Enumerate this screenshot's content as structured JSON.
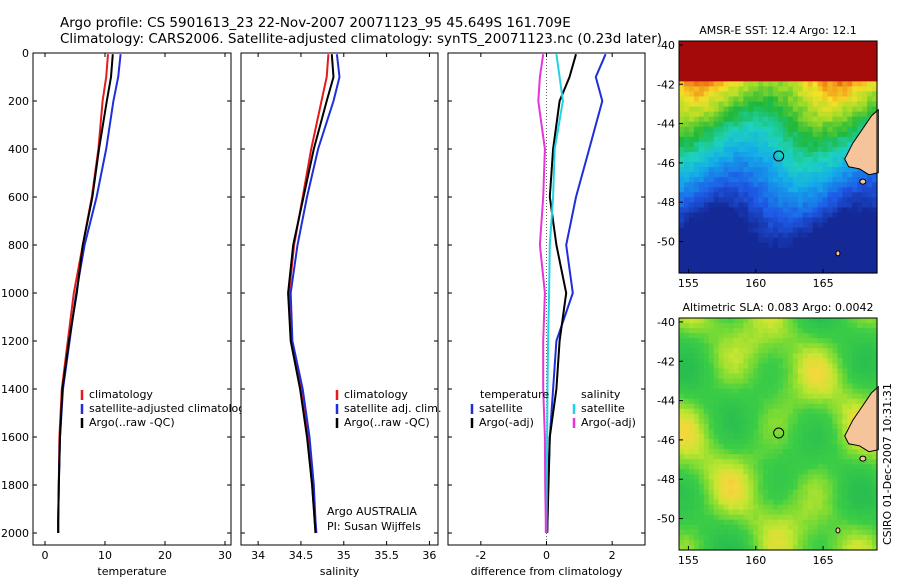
{
  "header": {
    "title_line1": "Argo profile: CS 5901613_23 22-Nov-2007 20071123_95 45.649S 161.709E",
    "title_line2": "Climatology: CARS2006. Satellite-adjusted climatology: synTS_20071123.nc (0.23d later)"
  },
  "side_stamp": "CSIRO 01-Dec-2007 10:31:31",
  "chart_data": [
    {
      "id": "temperature",
      "type": "line",
      "xlabel": "temperature",
      "ylabel": "",
      "xlim": [
        -2,
        31
      ],
      "ylim": [
        2050,
        0
      ],
      "xticks": [
        "0",
        "10",
        "20",
        "30"
      ],
      "yticks": [
        "0",
        "200",
        "400",
        "600",
        "800",
        "1000",
        "1200",
        "1400",
        "1600",
        "1800",
        "2000"
      ],
      "legend": [
        "climatology",
        "satellite-adjusted climatology",
        "Argo(..raw -QC)"
      ],
      "series": [
        {
          "name": "climatology",
          "color": "#e41a1c",
          "x": [
            10.5,
            10.2,
            9.6,
            8.9,
            7.8,
            6.3,
            4.8,
            3.8,
            2.8,
            2.4,
            2.3,
            2.2,
            2.2
          ],
          "y": [
            5,
            100,
            200,
            400,
            600,
            800,
            1000,
            1200,
            1400,
            1600,
            1800,
            1950,
            2000
          ]
        },
        {
          "name": "satellite-adjusted climatology",
          "color": "#1f2fd8",
          "x": [
            12.6,
            12.2,
            11.4,
            10.2,
            8.6,
            6.6,
            5.2,
            4.1,
            3.0,
            2.5,
            2.3,
            2.2,
            2.2
          ],
          "y": [
            5,
            100,
            200,
            400,
            600,
            800,
            1000,
            1200,
            1400,
            1600,
            1800,
            1950,
            2000
          ]
        },
        {
          "name": "Argo(..raw -QC)",
          "color": "#000000",
          "x": [
            11.3,
            11.0,
            10.3,
            9.0,
            7.9,
            6.3,
            5.3,
            4.0,
            2.9,
            2.5,
            2.3,
            2.2,
            2.2
          ],
          "y": [
            5,
            100,
            200,
            400,
            600,
            800,
            1000,
            1200,
            1400,
            1600,
            1800,
            1950,
            2000
          ]
        }
      ]
    },
    {
      "id": "salinity",
      "type": "line",
      "xlabel": "salinity",
      "ylabel": "",
      "xlim": [
        33.8,
        36.1
      ],
      "ylim": [
        2050,
        0
      ],
      "xticks": [
        "34",
        "34.5",
        "35",
        "35.5",
        "36"
      ],
      "legend": [
        "climatology",
        "satellite adj. clim.",
        "Argo(..raw -QC)"
      ],
      "annotation": [
        "Argo AUSTRALIA",
        "PI: Susan Wijffels"
      ],
      "series": [
        {
          "name": "climatology",
          "color": "#e41a1c",
          "x": [
            34.82,
            34.8,
            34.74,
            34.62,
            34.52,
            34.42,
            34.36,
            34.39,
            34.5,
            34.58,
            34.63,
            34.66,
            34.67
          ],
          "y": [
            5,
            100,
            200,
            400,
            600,
            800,
            1000,
            1200,
            1400,
            1600,
            1800,
            1950,
            2000
          ]
        },
        {
          "name": "satellite adj. clim.",
          "color": "#1f2fd8",
          "x": [
            34.92,
            34.95,
            34.88,
            34.7,
            34.57,
            34.46,
            34.38,
            34.4,
            34.52,
            34.6,
            34.65,
            34.67,
            34.68
          ],
          "y": [
            5,
            100,
            200,
            400,
            600,
            800,
            1000,
            1200,
            1400,
            1600,
            1800,
            1950,
            2000
          ]
        },
        {
          "name": "Argo(..raw -QC)",
          "color": "#000000",
          "x": [
            34.86,
            34.88,
            34.8,
            34.65,
            34.53,
            34.41,
            34.35,
            34.38,
            34.49,
            34.57,
            34.63,
            34.66,
            34.67
          ],
          "y": [
            5,
            100,
            200,
            400,
            600,
            800,
            1000,
            1200,
            1400,
            1600,
            1800,
            1950,
            2000
          ]
        }
      ]
    },
    {
      "id": "difference",
      "type": "line",
      "xlabel": "difference from climatology",
      "ylabel": "",
      "xlim": [
        -3,
        3
      ],
      "ylim": [
        2050,
        0
      ],
      "xticks": [
        "-2",
        "0",
        "2"
      ],
      "legend_left_title": "temperature",
      "legend_right_title": "salinity",
      "legend_left": [
        "satellite",
        "Argo(-adj)"
      ],
      "legend_right": [
        "satellite",
        "Argo(-adj)"
      ],
      "series": [
        {
          "name": "temperature satellite",
          "color": "#1f2fd8",
          "x": [
            1.8,
            1.5,
            1.7,
            1.3,
            0.9,
            0.6,
            0.8,
            0.3,
            0.2,
            0.1,
            0.05,
            0.03,
            0.02
          ],
          "y": [
            5,
            100,
            200,
            400,
            600,
            800,
            1000,
            1200,
            1400,
            1600,
            1800,
            1950,
            2000
          ]
        },
        {
          "name": "temperature Argo(-adj)",
          "color": "#000000",
          "x": [
            0.9,
            0.7,
            0.4,
            0.2,
            0.1,
            0.3,
            0.6,
            0.4,
            0.3,
            0.1,
            0.06,
            0.03,
            0.02
          ],
          "y": [
            5,
            100,
            200,
            400,
            600,
            800,
            1000,
            1200,
            1400,
            1600,
            1800,
            1950,
            2000
          ]
        },
        {
          "name": "salinity satellite",
          "color": "#22d3e6",
          "x": [
            0.3,
            0.4,
            0.5,
            0.25,
            0.2,
            0.1,
            0.08,
            0.05,
            0.03,
            0.02,
            0.01,
            0.0,
            0.0
          ],
          "y": [
            5,
            100,
            200,
            400,
            600,
            800,
            1000,
            1200,
            1400,
            1600,
            1800,
            1950,
            2000
          ]
        },
        {
          "name": "salinity Argo(-adj)",
          "color": "#e535d4",
          "x": [
            -0.1,
            -0.2,
            -0.25,
            -0.05,
            -0.1,
            -0.2,
            -0.05,
            -0.1,
            -0.1,
            -0.05,
            -0.04,
            -0.02,
            -0.02
          ],
          "y": [
            5,
            100,
            200,
            400,
            600,
            800,
            1000,
            1200,
            1400,
            1600,
            1800,
            1950,
            2000
          ]
        }
      ]
    },
    {
      "id": "sst-map",
      "type": "heatmap",
      "title": "AMSR-E SST: 12.4 Argo: 12.1",
      "xlim": [
        154.3,
        169
      ],
      "ylim": [
        -51.6,
        -39.8
      ],
      "xticks": [
        "155",
        "160",
        "165"
      ],
      "yticks": [
        "-40",
        "-42",
        "-44",
        "-46",
        "-48",
        "-50"
      ],
      "argo_position": {
        "lon": 161.7,
        "lat": -45.65
      }
    },
    {
      "id": "sla-map",
      "type": "heatmap",
      "title": "Altimetric SLA: 0.083 Argo: 0.0042",
      "xlim": [
        154.3,
        169
      ],
      "ylim": [
        -51.6,
        -39.8
      ],
      "xticks": [
        "155",
        "160",
        "165"
      ],
      "yticks": [
        "-40",
        "-42",
        "-44",
        "-46",
        "-48",
        "-50"
      ],
      "argo_position": {
        "lon": 161.7,
        "lat": -45.65
      }
    }
  ]
}
